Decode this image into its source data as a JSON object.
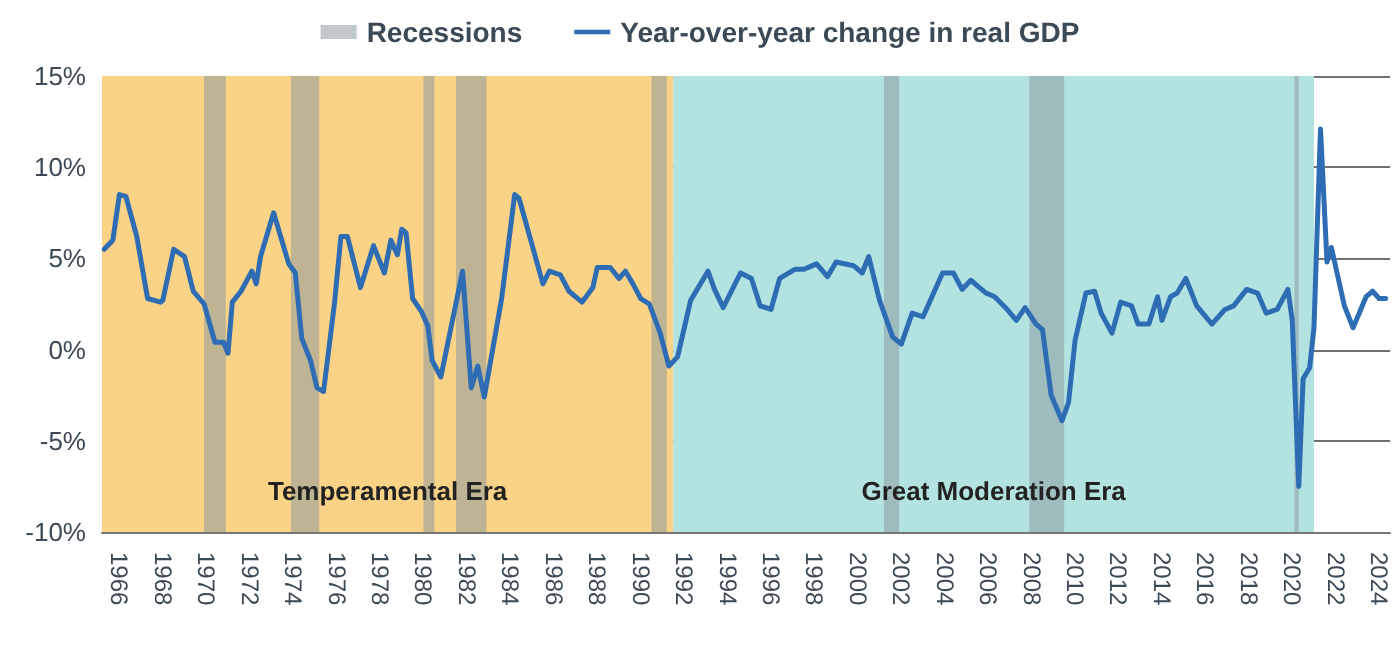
{
  "chart_data": {
    "type": "line",
    "x": [
      1965.3,
      1965.7,
      1966.0,
      1966.3,
      1966.8,
      1967.3,
      1967.9,
      1968.0,
      1968.5,
      1969.0,
      1969.4,
      1969.9,
      1970.4,
      1970.8,
      1971.0,
      1971.2,
      1971.6,
      1972.1,
      1972.3,
      1972.5,
      1973.1,
      1973.8,
      1974.1,
      1974.4,
      1974.8,
      1975.1,
      1975.4,
      1975.9,
      1976.2,
      1976.5,
      1977.1,
      1977.7,
      1978.2,
      1978.5,
      1978.8,
      1979.0,
      1979.2,
      1979.5,
      1979.9,
      1980.2,
      1980.4,
      1980.8,
      1981.8,
      1982.2,
      1982.5,
      1982.8,
      1983.6,
      1984.2,
      1984.4,
      1985.5,
      1985.8,
      1986.3,
      1986.7,
      1987.3,
      1987.8,
      1988.0,
      1988.6,
      1989.0,
      1989.3,
      1989.6,
      1990.0,
      1990.4,
      1990.9,
      1991.3,
      1991.7,
      1992.3,
      1993.1,
      1993.4,
      1993.8,
      1994.6,
      1995.1,
      1995.5,
      1996.0,
      1996.4,
      1997.1,
      1997.5,
      1998.1,
      1998.6,
      1999.0,
      1999.8,
      2000.2,
      2000.5,
      2001.0,
      2001.6,
      2002.0,
      2002.5,
      2003.0,
      2003.9,
      2004.4,
      2004.8,
      2005.2,
      2005.9,
      2006.3,
      2006.8,
      2007.3,
      2007.7,
      2008.2,
      2008.5,
      2008.9,
      2009.4,
      2009.7,
      2010.0,
      2010.5,
      2010.9,
      2011.2,
      2011.7,
      2012.1,
      2012.6,
      2012.9,
      2013.4,
      2013.8,
      2014.0,
      2014.4,
      2014.7,
      2015.1,
      2015.6,
      2016.3,
      2016.9,
      2017.3,
      2017.9,
      2018.4,
      2018.8,
      2019.3,
      2019.8,
      2020.0,
      2020.3,
      2020.5,
      2020.8,
      2021.0,
      2021.3,
      2021.6,
      2021.8,
      2022.4,
      2022.8,
      2023.4,
      2023.7,
      2024.0,
      2024.3
    ],
    "series": [
      {
        "name": "Year-over-year change in real GDP",
        "color": "#2e6db4",
        "values": [
          5.5,
          6.0,
          8.5,
          8.4,
          6.2,
          2.8,
          2.6,
          2.7,
          5.5,
          5.1,
          3.2,
          2.5,
          0.4,
          0.4,
          -0.2,
          2.6,
          3.2,
          4.3,
          3.6,
          5.1,
          7.5,
          4.7,
          4.2,
          0.6,
          -0.6,
          -2.1,
          -2.3,
          2.5,
          6.2,
          6.2,
          3.4,
          5.7,
          4.2,
          6.0,
          5.2,
          6.6,
          6.4,
          2.8,
          2.1,
          1.3,
          -0.6,
          -1.5,
          4.3,
          -2.1,
          -0.9,
          -2.6,
          2.8,
          8.5,
          8.3,
          3.6,
          4.3,
          4.1,
          3.2,
          2.6,
          3.4,
          4.5,
          4.5,
          3.9,
          4.3,
          3.7,
          2.8,
          2.5,
          0.9,
          -0.9,
          -0.4,
          2.7,
          4.3,
          3.3,
          2.3,
          4.2,
          3.9,
          2.4,
          2.2,
          3.9,
          4.4,
          4.4,
          4.7,
          4.0,
          4.8,
          4.6,
          4.2,
          5.1,
          2.7,
          0.7,
          0.3,
          2.0,
          1.8,
          4.2,
          4.2,
          3.3,
          3.8,
          3.1,
          2.9,
          2.3,
          1.6,
          2.3,
          1.4,
          1.1,
          -2.5,
          -3.9,
          -2.9,
          0.5,
          3.1,
          3.2,
          2.0,
          0.9,
          2.6,
          2.4,
          1.4,
          1.4,
          2.9,
          1.6,
          2.9,
          3.1,
          3.9,
          2.4,
          1.4,
          2.2,
          2.4,
          3.3,
          3.1,
          2.0,
          2.2,
          3.3,
          1.6,
          -7.5,
          -1.6,
          -1.0,
          1.2,
          12.1,
          4.8,
          5.6,
          2.4,
          1.2,
          2.9,
          3.2,
          2.8,
          2.8
        ]
      }
    ],
    "xlim": [
      1965.2,
      2024.5
    ],
    "xticks": [
      1966,
      1968,
      1970,
      1972,
      1974,
      1976,
      1978,
      1980,
      1982,
      1984,
      1986,
      1988,
      1990,
      1992,
      1994,
      1996,
      1998,
      2000,
      2002,
      2004,
      2006,
      2008,
      2010,
      2012,
      2014,
      2016,
      2018,
      2020,
      2022,
      2024
    ],
    "ylim": [
      -10,
      15
    ],
    "yticks": [
      {
        "value": -10,
        "label": "-10%"
      },
      {
        "value": -5,
        "label": "-5%"
      },
      {
        "value": 0,
        "label": "0%"
      },
      {
        "value": 5,
        "label": "5%"
      },
      {
        "value": 10,
        "label": "10%"
      },
      {
        "value": 15,
        "label": "15%"
      }
    ],
    "bands": [
      {
        "axis": "x",
        "from": 1965.2,
        "to": 1991.5,
        "label": "Temperamental Era",
        "color": "#fbd386"
      },
      {
        "axis": "x",
        "from": 1991.5,
        "to": 2021.0,
        "label": "Great Moderation Era",
        "color": "#b3e3e1"
      },
      {
        "axis": "x",
        "from": 1969.9,
        "to": 1970.9,
        "label": "Recessions",
        "color": "#8d9aa0"
      },
      {
        "axis": "x",
        "from": 1973.9,
        "to": 1975.2,
        "color": "#8d9aa0"
      },
      {
        "axis": "x",
        "from": 1980.0,
        "to": 1980.5,
        "color": "#8d9aa0"
      },
      {
        "axis": "x",
        "from": 1981.5,
        "to": 1982.9,
        "color": "#8d9aa0"
      },
      {
        "axis": "x",
        "from": 1990.5,
        "to": 1991.2,
        "color": "#8d9aa0"
      },
      {
        "axis": "x",
        "from": 2001.2,
        "to": 2001.9,
        "color": "#8d9aa0"
      },
      {
        "axis": "x",
        "from": 2007.9,
        "to": 2009.5,
        "color": "#8d9aa0"
      },
      {
        "axis": "x",
        "from": 2020.1,
        "to": 2020.3,
        "color": "#8d9aa0"
      }
    ],
    "grid": "y",
    "legend": "top",
    "marker": "none",
    "line_style": "solid"
  }
}
